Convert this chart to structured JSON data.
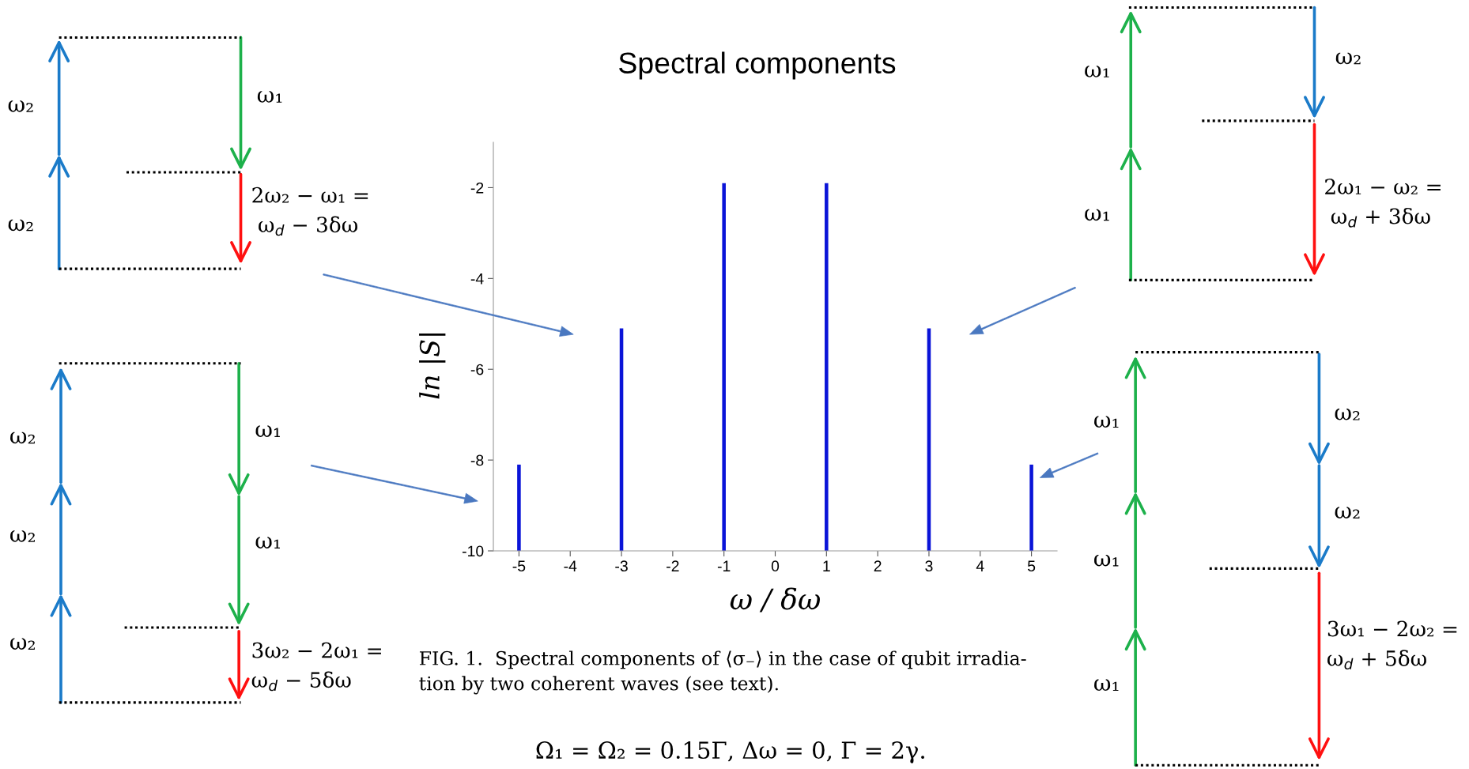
{
  "chart_data": {
    "type": "bar",
    "title": "Spectral components",
    "xlabel": "ω / δω",
    "ylabel": "ln |S|",
    "x": [
      -5,
      -3,
      -1,
      1,
      3,
      5
    ],
    "base": [
      -10,
      -10,
      -10,
      -10,
      -10,
      -10
    ],
    "values": [
      1.9,
      4.9,
      8.1,
      8.1,
      4.9,
      1.9
    ],
    "color": "#0a14d8",
    "xlim": [
      -5.5,
      5.5
    ],
    "xticks": [
      -5,
      -4,
      -3,
      -2,
      -1,
      0,
      1,
      2,
      3,
      4,
      5
    ],
    "ylim": [
      -10,
      -1
    ],
    "yticks": [
      -10,
      -8,
      -6,
      -4,
      -2
    ],
    "grid": false,
    "legend": false,
    "annotations": [
      "FIG. 1.  Spectral components of ⟨σ₋⟩ in the case of qubit irradia-\ntion by two coherent waves (see text).",
      "Ω₁ = Ω₂ = 0.15Γ, Δω = 0, Γ = 2γ.",
      "2ω₂ − ω₁ =\n ω$_{d}$ − 3δω",
      "3ω₂ − 2ω₁ =\nω$_{d}$ − 5δω",
      "2ω₁ − ω₂ =\n ω$_{d}$ + 3δω",
      "3ω₁ − 2ω₂ =\nω$_{d}$ + 5δω",
      "ω₂",
      "ω₂",
      "ω₁",
      "ω₂",
      "ω₂",
      "ω₂",
      "ω₁",
      "ω₁",
      "ω₁",
      "ω₁",
      "ω₂",
      "ω₁",
      "ω₁",
      "ω₁",
      "ω₂",
      "ω₂"
    ]
  }
}
